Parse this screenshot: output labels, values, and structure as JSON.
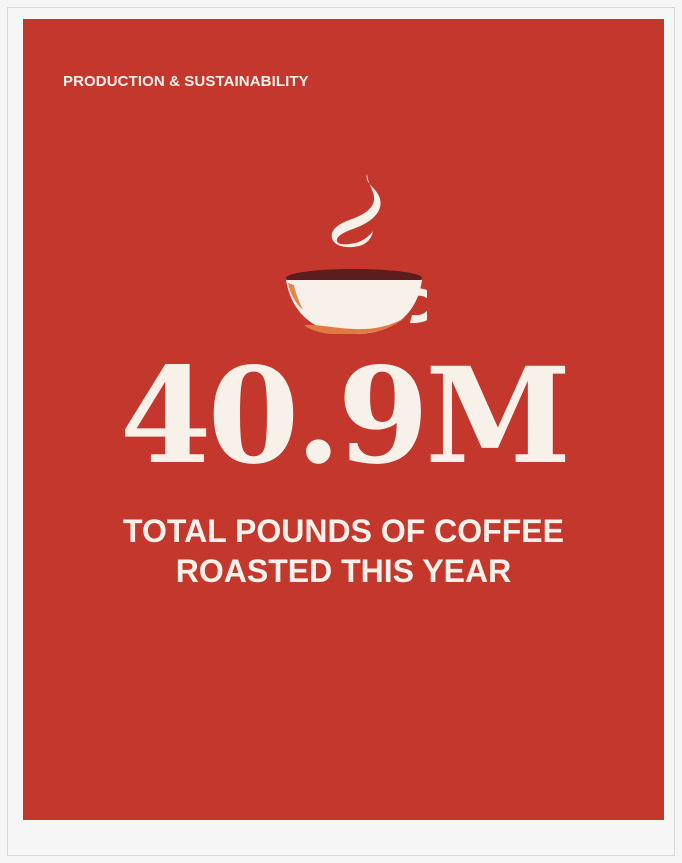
{
  "card": {
    "eyebrow": "PRODUCTION & SUSTAINABILITY",
    "stat_value": "40.9M",
    "caption_lines": [
      "TOTAL POUNDS OF COFFEE",
      "ROASTED THIS YEAR"
    ]
  },
  "icons": {
    "illustration": "coffee-cup-icon"
  },
  "colors": {
    "page_background": "#f5f5f5",
    "card_background": "#c3372d",
    "text": "#f8f1ea",
    "cup_body": "#f8f1ea",
    "cup_accent": "#e17a41",
    "coffee": "#5b1d1d"
  }
}
